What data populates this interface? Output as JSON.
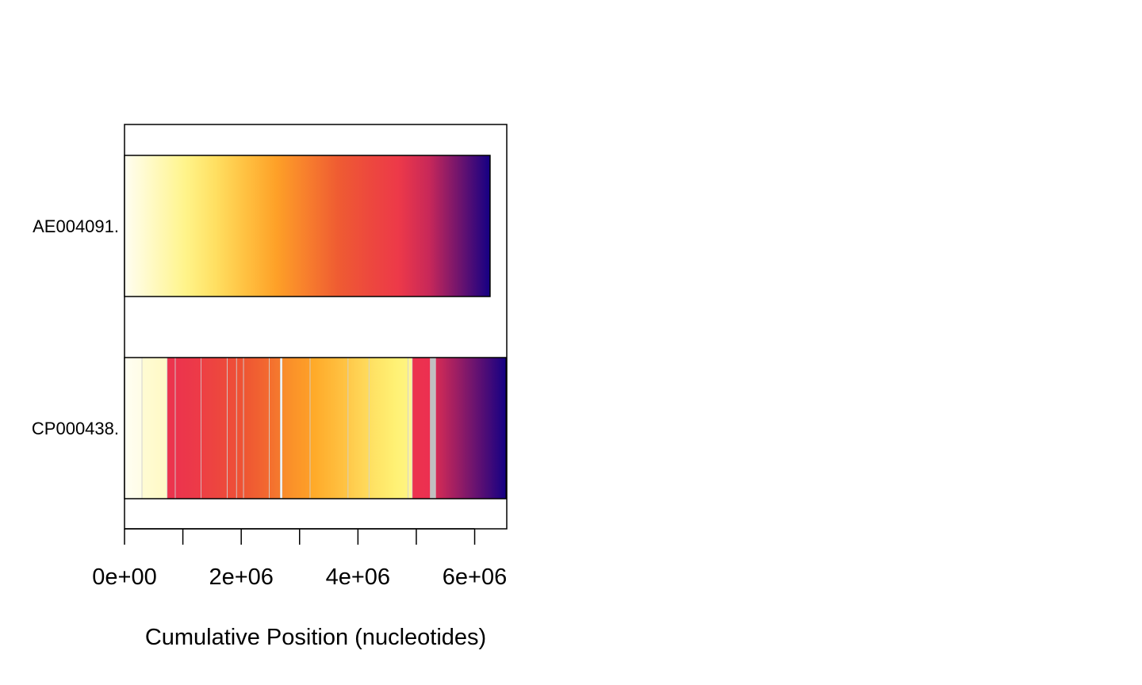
{
  "chart_data": {
    "type": "synteny-bar",
    "xlabel": "Cumulative Position (nucleotides)",
    "xlim": [
      0,
      6550000
    ],
    "x_ticks": [
      0,
      1000000,
      2000000,
      3000000,
      4000000,
      5000000,
      6000000
    ],
    "x_tick_labels": [
      {
        "value": 0,
        "label": "0e+00"
      },
      {
        "value": 2000000,
        "label": "2e+06"
      },
      {
        "value": 4000000,
        "label": "4e+06"
      },
      {
        "value": 6000000,
        "label": "6e+06"
      }
    ],
    "grid": false,
    "palette": [
      "#fffef2",
      "#fff275",
      "#ffa726",
      "#ee5533",
      "#ec3050",
      "#140084"
    ],
    "gap_color": "#c0c0c0",
    "genomes": [
      {
        "name": "AE004091.",
        "length": 6264000,
        "blocks": [
          {
            "start": 0,
            "end": 6264000,
            "cstart": 0.0,
            "cend": 1.0
          }
        ]
      },
      {
        "name": "CP000438.",
        "length": 6540000,
        "blocks": [
          {
            "start": 0,
            "end": 300000,
            "cstart": 0.0,
            "cend": 0.02
          },
          {
            "start": 300000,
            "end": 730000,
            "cstart": 0.05,
            "cend": 0.07
          },
          {
            "start": 730000,
            "end": 870000,
            "cstart": 0.78,
            "cend": 0.78
          },
          {
            "start": 870000,
            "end": 1310000,
            "cstart": 0.78,
            "cend": 0.74
          },
          {
            "start": 1310000,
            "end": 1760000,
            "cstart": 0.72,
            "cend": 0.66
          },
          {
            "start": 1760000,
            "end": 1920000,
            "cstart": 0.65,
            "cend": 0.64
          },
          {
            "start": 1920000,
            "end": 2040000,
            "cstart": 0.62,
            "cend": 0.61
          },
          {
            "start": 2040000,
            "end": 2480000,
            "cstart": 0.6,
            "cend": 0.55
          },
          {
            "start": 2480000,
            "end": 2670000,
            "cstart": 0.54,
            "cend": 0.51
          },
          {
            "start": 2700000,
            "end": 3180000,
            "cstart": 0.47,
            "cend": 0.42
          },
          {
            "start": 3180000,
            "end": 3830000,
            "cstart": 0.4,
            "cend": 0.32
          },
          {
            "start": 3830000,
            "end": 4190000,
            "cstart": 0.31,
            "cend": 0.26
          },
          {
            "start": 4190000,
            "end": 4860000,
            "cstart": 0.25,
            "cend": 0.18
          },
          {
            "start": 4860000,
            "end": 4930000,
            "cstart": 0.15,
            "cend": 0.15
          },
          {
            "start": 4930000,
            "end": 5240000,
            "cstart": 0.79,
            "cend": 0.8
          },
          {
            "start": 5240000,
            "end": 5330000,
            "gap": true
          },
          {
            "start": 5330000,
            "end": 6540000,
            "cstart": 0.82,
            "cend": 1.0
          }
        ]
      }
    ]
  }
}
